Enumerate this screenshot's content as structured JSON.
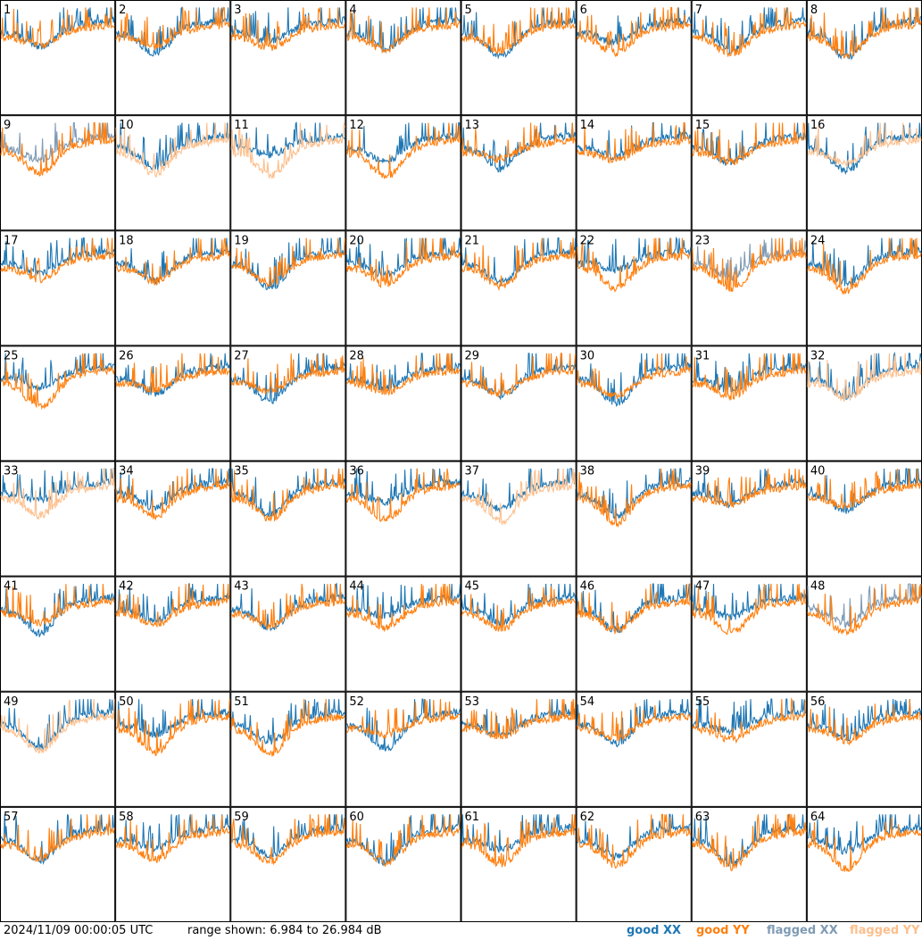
{
  "chart_data": {
    "type": "line",
    "layout": "small-multiples grid, 8 columns x 8 rows",
    "panel_ids": [
      "1",
      "2",
      "3",
      "4",
      "5",
      "6",
      "7",
      "8",
      "9",
      "10",
      "11",
      "12",
      "13",
      "14",
      "15",
      "16",
      "17",
      "18",
      "19",
      "20",
      "21",
      "22",
      "23",
      "24",
      "25",
      "26",
      "27",
      "28",
      "29",
      "30",
      "31",
      "32",
      "33",
      "34",
      "35",
      "36",
      "37",
      "38",
      "39",
      "40",
      "41",
      "42",
      "43",
      "44",
      "45",
      "46",
      "47",
      "48",
      "49",
      "50",
      "51",
      "52",
      "53",
      "54",
      "55",
      "56",
      "57",
      "58",
      "59",
      "60",
      "61",
      "62",
      "63",
      "64"
    ],
    "y_range_db": [
      6.984,
      26.984
    ],
    "series": [
      {
        "name": "good XX",
        "color": "#1f77b4"
      },
      {
        "name": "good YY",
        "color": "#ff7f0e"
      },
      {
        "name": "flagged XX",
        "color": "#7f9bb5"
      },
      {
        "name": "flagged YY",
        "color": "#fdbf8c"
      }
    ],
    "panels_with_flagged_xx": [
      "9",
      "23",
      "48"
    ],
    "panels_with_flagged_yy": [
      "10",
      "11",
      "16",
      "32",
      "33",
      "37",
      "49"
    ],
    "grid": false
  },
  "footer": {
    "timestamp": "2024/11/09 00:00:05 UTC",
    "range": "range shown: 6.984 to 26.984 dB",
    "legend": {
      "good_xx": "good XX",
      "good_yy": "good YY",
      "flagged_xx": "flagged XX",
      "flagged_yy": "flagged YY"
    }
  }
}
